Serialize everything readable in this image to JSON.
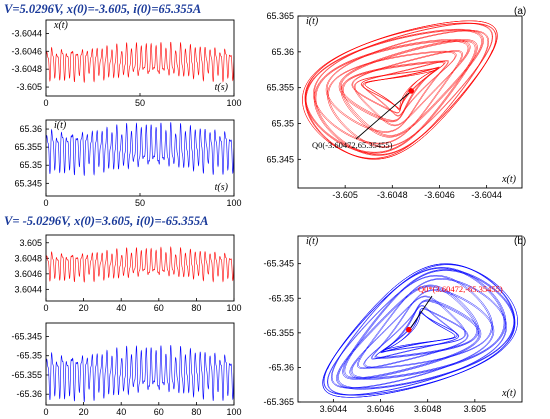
{
  "colors": {
    "red": "#ff0000",
    "blue": "#0000ff",
    "title": "#1a3a9a"
  },
  "top": {
    "title": "V=5.0296V, x(0)=-3.605, i(0)=65.355A",
    "panel_label": "(a)",
    "annotation": "Q0(-3.60472,65.35455)"
  },
  "bottom": {
    "title": "V= -5.0296V, x(0)=3.605, i(0)=-65.355A",
    "panel_label": "(b)",
    "annotation": "Q0*(3.60472,-65.35455)"
  },
  "chart_data": [
    {
      "id": "top-x-time",
      "type": "line",
      "xlabel": "t(s)",
      "ylabel": "x(t)",
      "xlim": [
        0,
        100
      ],
      "ylim": [
        -3.6051,
        -3.60425
      ],
      "xticks": [
        0,
        50,
        100
      ],
      "yticks": [
        -3.6044,
        -3.6046,
        -3.6048,
        -3.605
      ],
      "ytick_labels": [
        "-3.6044",
        "-3.6046",
        "-3.6048",
        "-3.605"
      ],
      "series": [
        {
          "color": "#ff0000",
          "center": -3.60472,
          "amplitude": 0.00023,
          "oscillations": 38
        }
      ]
    },
    {
      "id": "top-i-time",
      "type": "line",
      "xlabel": "t(s)",
      "ylabel": "i(t)",
      "xlim": [
        0,
        100
      ],
      "ylim": [
        65.3415,
        65.3625
      ],
      "xticks": [
        0,
        50,
        100
      ],
      "yticks": [
        65.36,
        65.355,
        65.35,
        65.345
      ],
      "ytick_labels": [
        "65.36",
        "65.355",
        "65.35",
        "65.345"
      ],
      "series": [
        {
          "color": "#0000ff",
          "center": 65.35455,
          "amplitude": 0.0075,
          "oscillations": 38
        }
      ]
    },
    {
      "id": "top-phase",
      "type": "line",
      "xlabel": "x(t)",
      "ylabel": "i(t)",
      "xlim": [
        -3.6052,
        -3.60425
      ],
      "ylim": [
        65.341,
        65.365
      ],
      "xticks": [
        -3.605,
        -3.6048,
        -3.6046,
        -3.6044
      ],
      "xtick_labels": [
        "-3.605",
        "-3.6048",
        "-3.6046",
        "-3.6044"
      ],
      "yticks": [
        65.365,
        65.36,
        65.355,
        65.35,
        65.345
      ],
      "ytick_labels": [
        "65.365",
        "65.36",
        "65.355",
        "65.35",
        "65.345"
      ],
      "equilibrium": [
        -3.60472,
        65.35455
      ],
      "series": [
        {
          "color": "#ff0000"
        }
      ]
    },
    {
      "id": "bottom-x-time",
      "type": "line",
      "xlabel": "",
      "ylabel": "",
      "xlim": [
        0,
        100
      ],
      "ylim": [
        3.60425,
        3.6051
      ],
      "xticks": [
        0,
        20,
        40,
        60,
        80,
        100
      ],
      "yticks": [
        3.605,
        3.6048,
        3.6046,
        3.6044
      ],
      "ytick_labels": [
        "3.605",
        "3.6048",
        "3.6046",
        "3.6044"
      ],
      "series": [
        {
          "color": "#ff0000",
          "center": 3.60472,
          "amplitude": 0.00023,
          "oscillations": 38
        }
      ]
    },
    {
      "id": "bottom-i-time",
      "type": "line",
      "xlabel": "",
      "ylabel": "",
      "xlim": [
        0,
        100
      ],
      "ylim": [
        -65.3628,
        -65.3415
      ],
      "xticks": [
        0,
        20,
        40,
        60,
        80,
        100
      ],
      "yticks": [
        -65.345,
        -65.35,
        -65.355,
        -65.36
      ],
      "ytick_labels": [
        "-65.345",
        "-65.35",
        "-65.355",
        "-65.36"
      ],
      "series": [
        {
          "color": "#0000ff",
          "center": -65.35455,
          "amplitude": 0.0075,
          "oscillations": 38
        }
      ]
    },
    {
      "id": "bottom-phase",
      "type": "line",
      "xlabel": "x(t)",
      "ylabel": "i(t)",
      "xlim": [
        3.60425,
        3.6052
      ],
      "ylim": [
        -65.365,
        -65.341
      ],
      "xticks": [
        3.6044,
        3.6046,
        3.6048,
        3.605
      ],
      "xtick_labels": [
        "3.6044",
        "3.6046",
        "3.6048",
        "3.605"
      ],
      "yticks": [
        -65.345,
        -65.35,
        -65.355,
        -65.36,
        -65.365
      ],
      "ytick_labels": [
        "-65.345",
        "-65.35",
        "-65.355",
        "-65.36",
        "-65.365"
      ],
      "equilibrium": [
        3.60472,
        -65.35455
      ],
      "series": [
        {
          "color": "#0000ff"
        }
      ]
    }
  ]
}
